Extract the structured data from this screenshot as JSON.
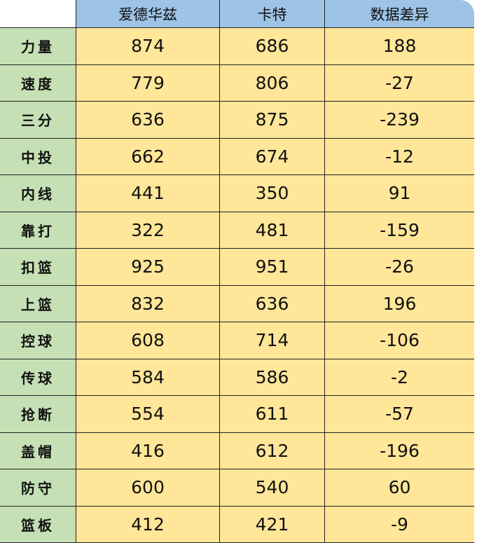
{
  "header": {
    "players": [
      "爱德华兹",
      "卡特"
    ],
    "diff": "数据差异"
  },
  "rows": [
    {
      "label": "力量",
      "a": "874",
      "b": "686",
      "d": "188"
    },
    {
      "label": "速度",
      "a": "779",
      "b": "806",
      "d": "-27"
    },
    {
      "label": "三分",
      "a": "636",
      "b": "875",
      "d": "-239"
    },
    {
      "label": "中投",
      "a": "662",
      "b": "674",
      "d": "-12"
    },
    {
      "label": "内线",
      "a": "441",
      "b": "350",
      "d": "91"
    },
    {
      "label": "靠打",
      "a": "322",
      "b": "481",
      "d": "-159"
    },
    {
      "label": "扣篮",
      "a": "925",
      "b": "951",
      "d": "-26"
    },
    {
      "label": "上篮",
      "a": "832",
      "b": "636",
      "d": "196"
    },
    {
      "label": "控球",
      "a": "608",
      "b": "714",
      "d": "-106"
    },
    {
      "label": "传球",
      "a": "584",
      "b": "586",
      "d": "-2"
    },
    {
      "label": "抢断",
      "a": "554",
      "b": "611",
      "d": "-57"
    },
    {
      "label": "盖帽",
      "a": "416",
      "b": "612",
      "d": "-196"
    },
    {
      "label": "防守",
      "a": "600",
      "b": "540",
      "d": "60"
    },
    {
      "label": "篮板",
      "a": "412",
      "b": "421",
      "d": "-9"
    }
  ],
  "colors": {
    "header": "#9dc3e6",
    "label": "#c5e0b4",
    "cell": "#ffe699"
  }
}
